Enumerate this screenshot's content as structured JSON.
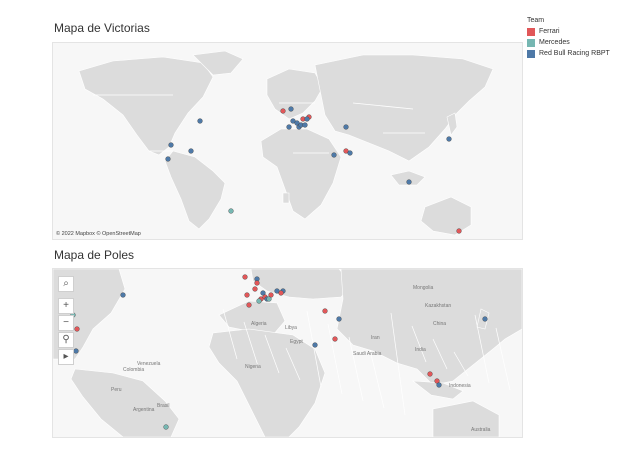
{
  "maps": {
    "victories": {
      "title": "Mapa de Victorias",
      "attribution": "© 2022 Mapbox © OpenStreetMap"
    },
    "poles": {
      "title": "Mapa de Poles"
    }
  },
  "legend": {
    "title": "Team",
    "items": [
      {
        "label": "Ferrari",
        "color": "#e15759"
      },
      {
        "label": "Mercedes",
        "color": "#76b7b2"
      },
      {
        "label": "Red Bull Racing RBPT",
        "color": "#4e79a7"
      }
    ]
  },
  "map_controls": [
    {
      "name": "search-icon",
      "glyph": "⌕"
    },
    {
      "name": "zoom-in-icon",
      "glyph": "+"
    },
    {
      "name": "zoom-out-icon",
      "glyph": "−"
    },
    {
      "name": "pin-icon",
      "glyph": "⚲"
    },
    {
      "name": "play-arrow-icon",
      "glyph": "▸"
    }
  ],
  "pole_labels": [
    "Brasil",
    "Egypt",
    "Nigeria",
    "India",
    "Australia",
    "Colombia",
    "Peru",
    "Argentina",
    "Kazakhstan",
    "China",
    "Mongolia",
    "Iran",
    "Algeria",
    "Libya",
    "Saudi Arabia",
    "Indonesia",
    "Venezuela"
  ]
}
